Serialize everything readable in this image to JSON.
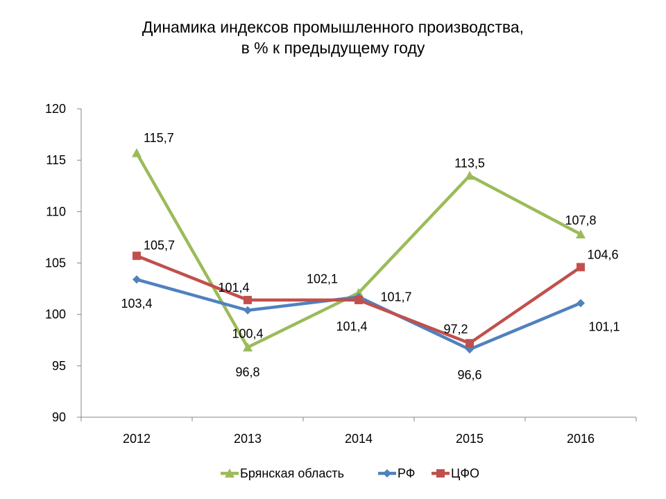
{
  "chart_data": {
    "type": "line",
    "title": "Динамика индексов промышленного производства,",
    "subtitle": "в % к предыдущему году",
    "xlabel": "",
    "ylabel": "",
    "categories": [
      "2012",
      "2013",
      "2014",
      "2015",
      "2016"
    ],
    "ylim": [
      90,
      120
    ],
    "yticks": [
      "90",
      "95",
      "100",
      "105",
      "110",
      "115",
      "120"
    ],
    "grid": false,
    "legend_position": "bottom",
    "series": [
      {
        "name": "Брянская область",
        "values": [
          115.7,
          96.8,
          102.1,
          113.5,
          107.8
        ],
        "labels": [
          "115,7",
          "96,8",
          "102,1",
          "113,5",
          "107,8"
        ],
        "color": "#9BBB59",
        "marker": "triangle"
      },
      {
        "name": "РФ",
        "values": [
          103.4,
          100.4,
          101.7,
          96.6,
          101.1
        ],
        "labels": [
          "103,4",
          "100,4",
          "101,7",
          "96,6",
          "101,1"
        ],
        "color": "#4F81BD",
        "marker": "diamond"
      },
      {
        "name": "ЦФО",
        "values": [
          105.7,
          101.4,
          101.4,
          97.2,
          104.6
        ],
        "labels": [
          "105,7",
          "101,4",
          "101,4",
          "97,2",
          "104,6"
        ],
        "color": "#C0504D",
        "marker": "square"
      }
    ]
  }
}
